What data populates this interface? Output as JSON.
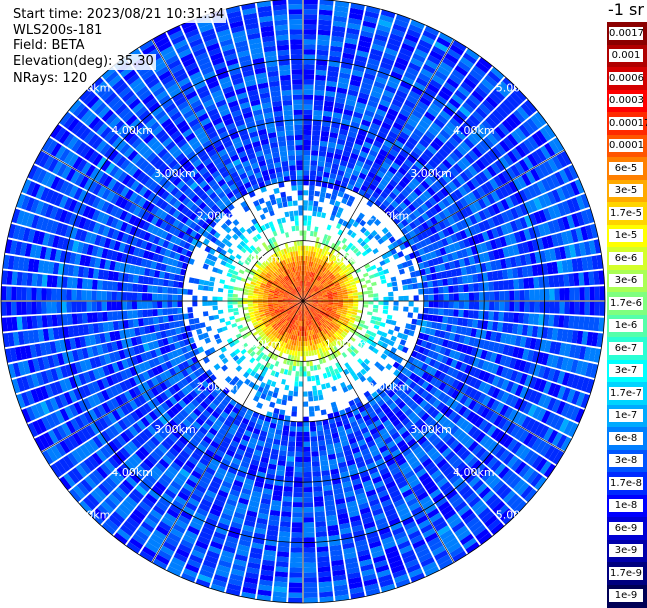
{
  "header": {
    "start_time": "Start time: 2023/08/21 10:31:34",
    "instrument": "WLS200s-181",
    "field": "Field: BETA",
    "elevation": "Elevation(deg): 35.30",
    "nrays": "NRays: 120"
  },
  "colorbar": {
    "title": "-1 sr",
    "labels": [
      "0.0017",
      "0.001",
      "0.0006",
      "0.0003",
      "0.00017",
      "0.0001",
      "6e-5",
      "3e-5",
      "1.7e-5",
      "1e-5",
      "6e-6",
      "3e-6",
      "1.7e-6",
      "1e-6",
      "6e-7",
      "3e-7",
      "1.7e-7",
      "1e-7",
      "6e-8",
      "3e-8",
      "1.7e-8",
      "1e-8",
      "6e-9",
      "3e-9",
      "1.7e-9",
      "1e-9"
    ],
    "colors": [
      "#8b0000",
      "#b00000",
      "#d40000",
      "#ff0000",
      "#ff2a00",
      "#ff5500",
      "#ff7f00",
      "#ffaa00",
      "#ffd400",
      "#ffff00",
      "#d4ff2a",
      "#aaff55",
      "#7fff7f",
      "#55ffaa",
      "#2affd4",
      "#00ffff",
      "#00d4ff",
      "#00aaff",
      "#007fff",
      "#0055ff",
      "#002aff",
      "#0000ff",
      "#0000d4",
      "#0000aa",
      "#00007f",
      "#000055"
    ]
  },
  "chart_data": {
    "type": "heatmap",
    "subtype": "polar PPI scan",
    "variable": "BETA",
    "units": "-1 sr",
    "rays": 120,
    "max_range_km": 5.0,
    "range_rings_km": [
      1.0,
      2.0,
      3.0,
      4.0,
      5.0
    ],
    "ring_labels": {
      "1": "1.00km",
      "2": "2.00km",
      "3": "3.00km",
      "4": "4.00km",
      "5": "5.00km"
    },
    "value_profile": [
      {
        "range_km": 0.2,
        "beta": 0.0001
      },
      {
        "range_km": 0.6,
        "beta": 6e-05
      },
      {
        "range_km": 1.0,
        "beta": 3e-06
      },
      {
        "range_km": 1.5,
        "beta": 1e-07
      },
      {
        "range_km": 2.0,
        "beta": 3e-08
      },
      {
        "range_km": 3.0,
        "beta": 3e-08
      },
      {
        "range_km": 5.0,
        "beta": 3e-08
      }
    ],
    "colorscale": "log, 1e-9 to 0.0017"
  }
}
